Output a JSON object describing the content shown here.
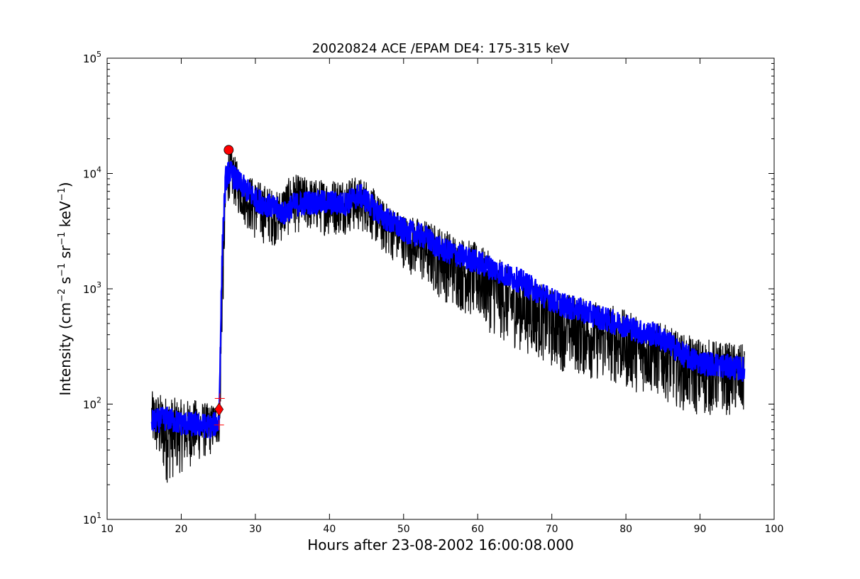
{
  "chart_data": {
    "type": "line",
    "title": "20020824 ACE /EPAM DE4: 175-315 keV",
    "xlabel": "Hours after 23-08-2002 16:00:08.000",
    "ylabel": {
      "prefix": "Intensity (cm",
      "sup1": "−2",
      "mid1": " s",
      "sup2": "−1",
      "mid2": " sr",
      "sup3": "−1",
      "mid3": " keV",
      "sup4": "−1",
      "suffix": ")"
    },
    "xlim": [
      10,
      100
    ],
    "ylim": [
      10,
      100000
    ],
    "yscale": "log",
    "grid": false,
    "x_ticks": [
      10,
      20,
      30,
      40,
      50,
      60,
      70,
      80,
      90,
      100
    ],
    "x_tick_labels": [
      "10",
      "20",
      "30",
      "40",
      "50",
      "60",
      "70",
      "80",
      "90",
      "100"
    ],
    "y_ticks": [
      {
        "value": 10,
        "base": "10",
        "exp": "1"
      },
      {
        "value": 100,
        "base": "10",
        "exp": "2"
      },
      {
        "value": 1000,
        "base": "10",
        "exp": "3"
      },
      {
        "value": 10000,
        "base": "10",
        "exp": "4"
      },
      {
        "value": 100000,
        "base": "10",
        "exp": "5"
      }
    ],
    "series": [
      {
        "role": "raw intensity",
        "color": "#000000",
        "envelope_points": [
          [
            16,
            40,
            130
          ],
          [
            18,
            20,
            120
          ],
          [
            20,
            25,
            110
          ],
          [
            22,
            30,
            110
          ],
          [
            24,
            35,
            100
          ],
          [
            25.2,
            45,
            110
          ],
          [
            25.5,
            300,
            2000
          ],
          [
            26,
            4000,
            12000
          ],
          [
            26.5,
            6000,
            18000
          ],
          [
            28,
            4000,
            11000
          ],
          [
            30,
            2500,
            9000
          ],
          [
            33,
            2300,
            7000
          ],
          [
            35,
            3000,
            10000
          ],
          [
            38,
            3000,
            9000
          ],
          [
            40,
            2800,
            9000
          ],
          [
            43,
            3000,
            9500
          ],
          [
            45,
            3000,
            9000
          ],
          [
            47,
            2000,
            6000
          ],
          [
            50,
            1500,
            4500
          ],
          [
            53,
            1000,
            4000
          ],
          [
            55,
            800,
            3500
          ],
          [
            58,
            600,
            2800
          ],
          [
            60,
            500,
            2500
          ],
          [
            63,
            350,
            1800
          ],
          [
            65,
            300,
            1400
          ],
          [
            68,
            250,
            1200
          ],
          [
            70,
            200,
            1000
          ],
          [
            73,
            180,
            900
          ],
          [
            75,
            160,
            800
          ],
          [
            78,
            150,
            750
          ],
          [
            80,
            130,
            650
          ],
          [
            83,
            120,
            550
          ],
          [
            85,
            110,
            500
          ],
          [
            88,
            85,
            400
          ],
          [
            90,
            75,
            380
          ],
          [
            93,
            80,
            350
          ],
          [
            96,
            75,
            330
          ]
        ]
      },
      {
        "role": "smoothed intensity",
        "color": "#0000ff",
        "points": [
          [
            16,
            70
          ],
          [
            18,
            75
          ],
          [
            20,
            68
          ],
          [
            22,
            66
          ],
          [
            24,
            64
          ],
          [
            25.1,
            70
          ],
          [
            25.3,
            400
          ],
          [
            25.6,
            3000
          ],
          [
            26,
            9000
          ],
          [
            26.5,
            10500
          ],
          [
            27,
            9500
          ],
          [
            28,
            8000
          ],
          [
            29,
            7000
          ],
          [
            30,
            6000
          ],
          [
            32,
            5200
          ],
          [
            34,
            4500
          ],
          [
            35,
            5300
          ],
          [
            37,
            5600
          ],
          [
            40,
            5600
          ],
          [
            42,
            5400
          ],
          [
            44,
            6500
          ],
          [
            45,
            5800
          ],
          [
            47,
            4300
          ],
          [
            50,
            3200
          ],
          [
            53,
            2800
          ],
          [
            55,
            2200
          ],
          [
            57,
            2000
          ],
          [
            60,
            1700
          ],
          [
            62,
            1500
          ],
          [
            64,
            1300
          ],
          [
            66,
            1150
          ],
          [
            68,
            950
          ],
          [
            70,
            800
          ],
          [
            72,
            700
          ],
          [
            74,
            650
          ],
          [
            76,
            580
          ],
          [
            78,
            520
          ],
          [
            80,
            480
          ],
          [
            82,
            420
          ],
          [
            84,
            400
          ],
          [
            86,
            330
          ],
          [
            88,
            260
          ],
          [
            90,
            230
          ],
          [
            92,
            220
          ],
          [
            94,
            210
          ],
          [
            96,
            200
          ]
        ]
      }
    ],
    "markers": [
      {
        "shape": "plus",
        "x": 25.2,
        "y": 112,
        "color": "#ff0000"
      },
      {
        "shape": "plus",
        "x": 25.1,
        "y": 66,
        "color": "#ff0000"
      },
      {
        "shape": "diamond",
        "x": 25.1,
        "y": 90,
        "color": "#ff0000"
      },
      {
        "shape": "circle",
        "x": 26.4,
        "y": 16000,
        "color": "#ff0000"
      }
    ]
  }
}
